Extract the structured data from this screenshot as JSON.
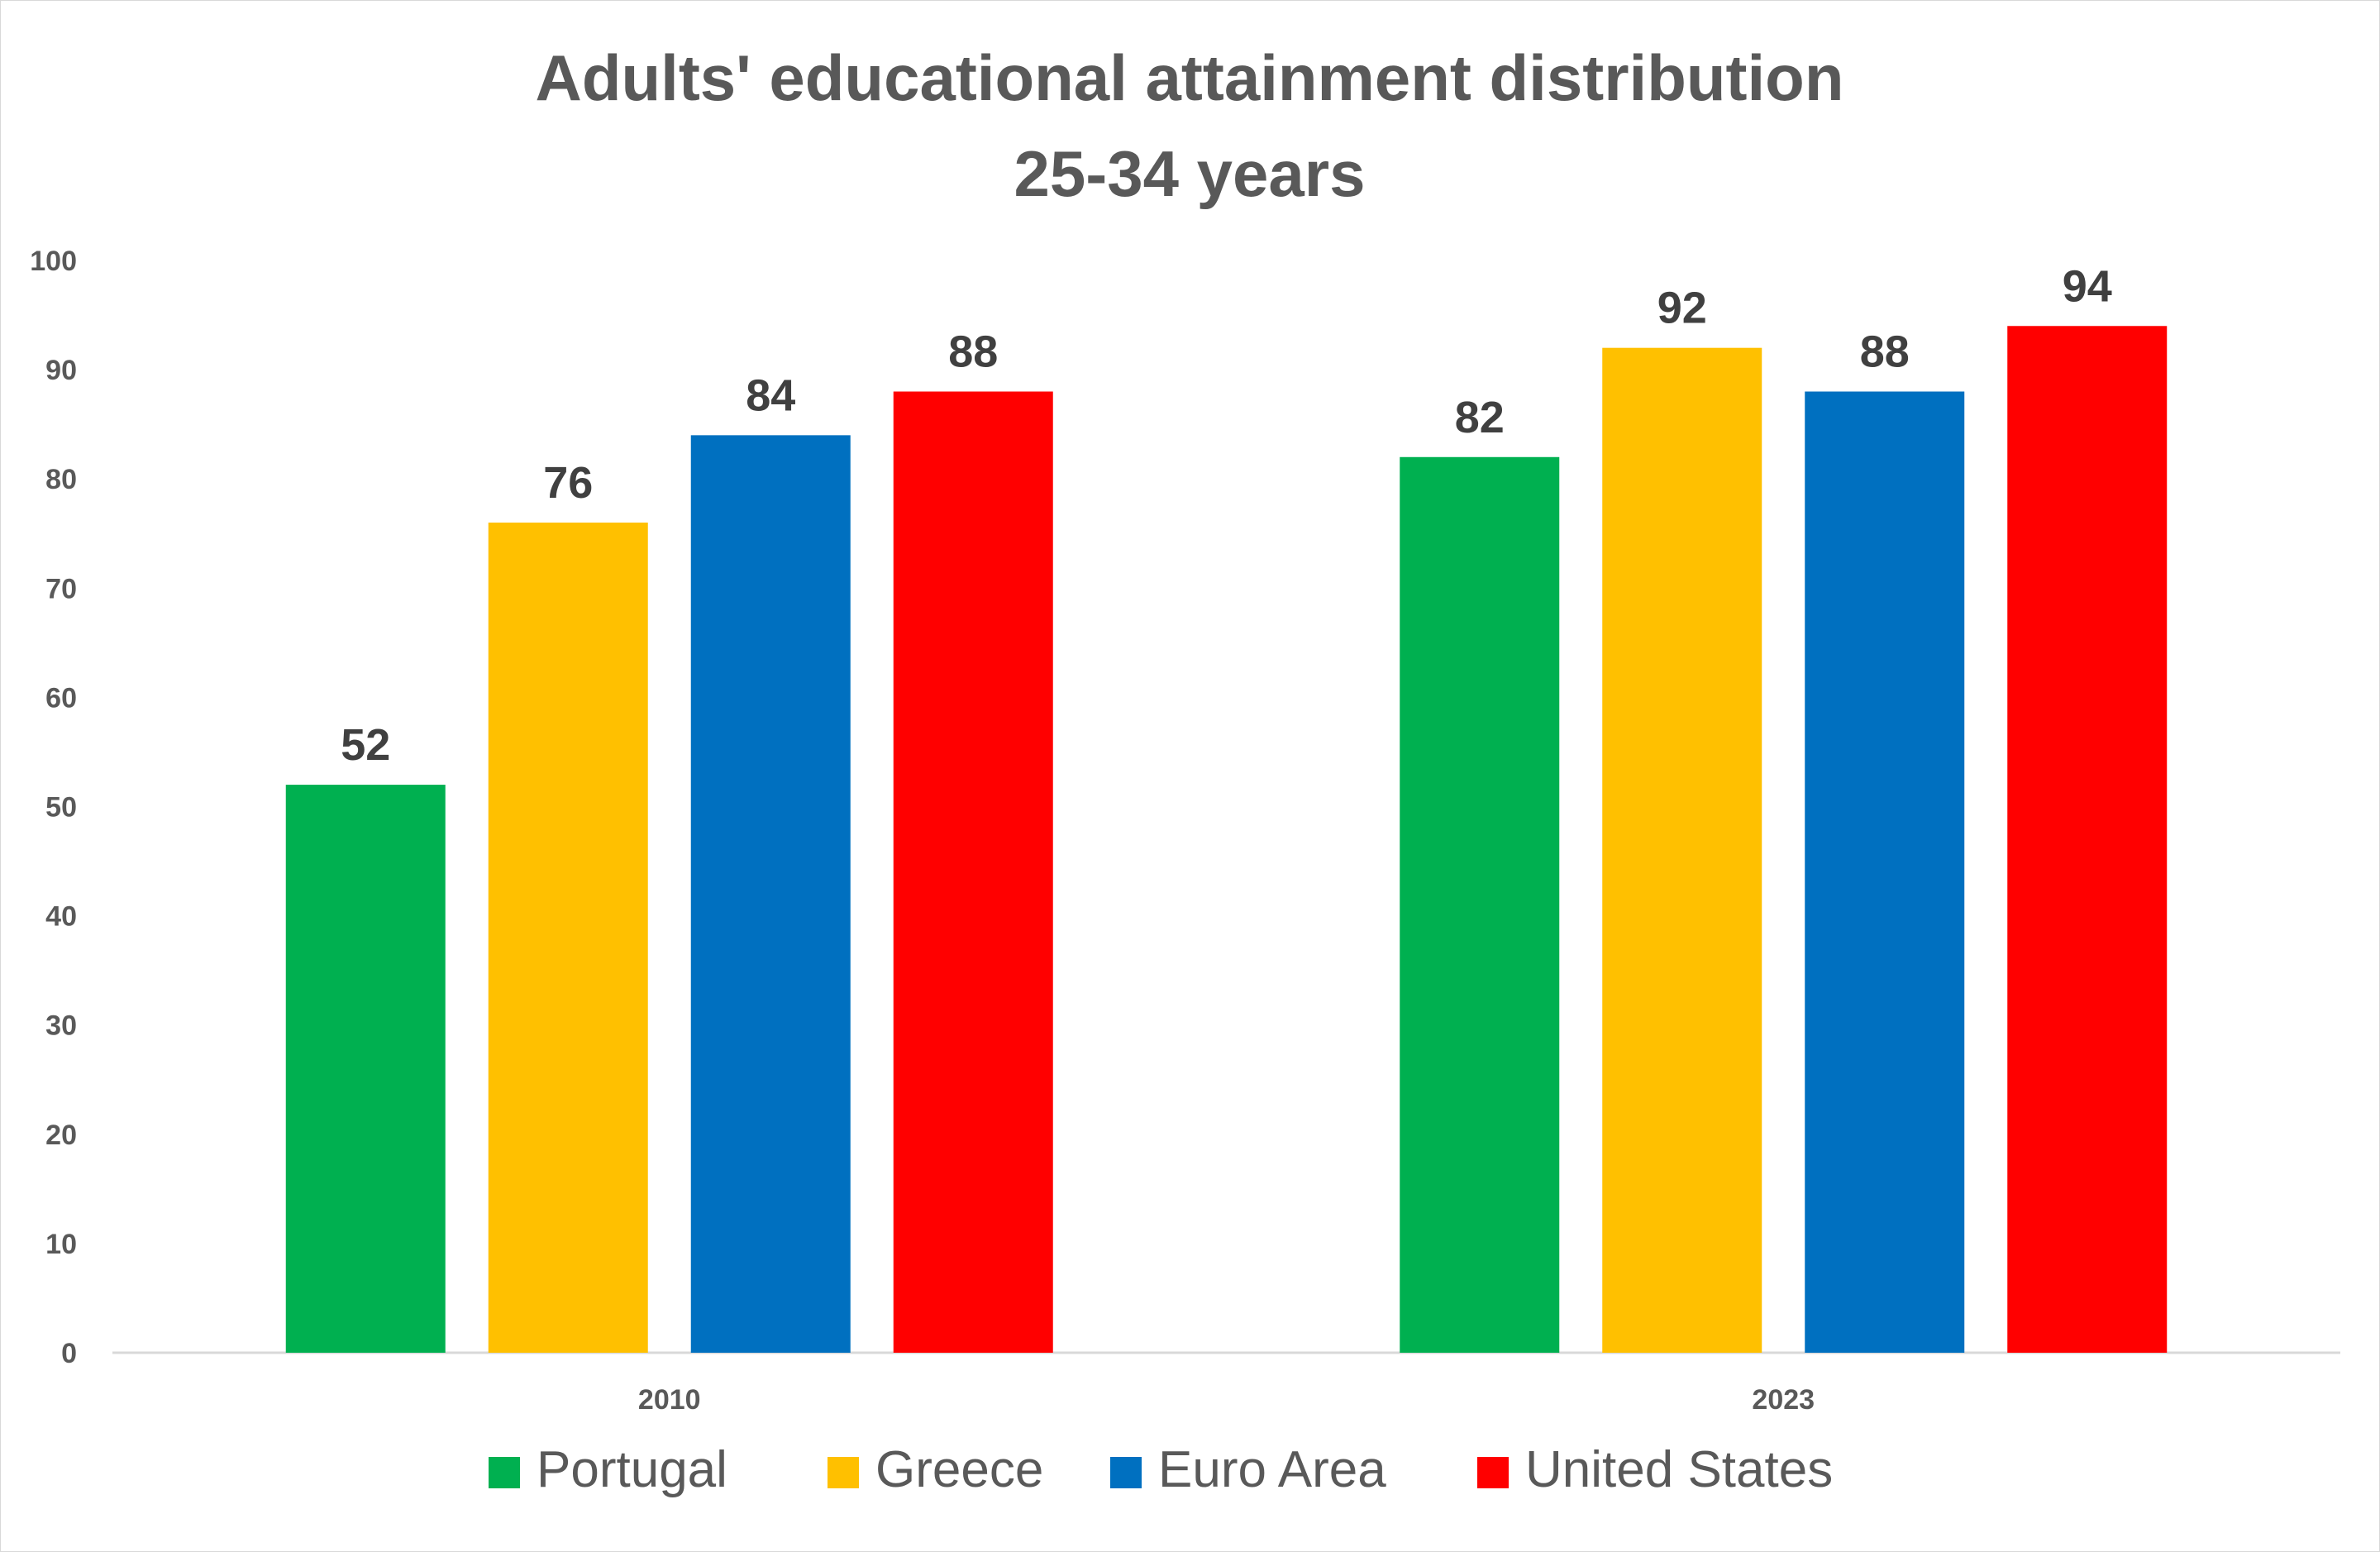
{
  "chart_data": {
    "type": "bar",
    "title": "Adults' educational attainment distribution",
    "subtitle": "25-34 years",
    "categories": [
      "2010",
      "2023"
    ],
    "series": [
      {
        "name": "Portugal",
        "values": [
          52,
          82
        ],
        "labels": [
          "52",
          "82"
        ],
        "color": "#00b050"
      },
      {
        "name": "Greece",
        "values": [
          76,
          92
        ],
        "labels": [
          "76",
          "92"
        ],
        "color": "#ffc000"
      },
      {
        "name": "Euro Area",
        "values": [
          84,
          88
        ],
        "labels": [
          "84",
          "88"
        ],
        "color": "#0070c0"
      },
      {
        "name": "United States",
        "values": [
          88,
          94
        ],
        "labels": [
          "88",
          "94"
        ],
        "color": "#ff0000"
      }
    ],
    "ylim": [
      0,
      100
    ],
    "yticks": [
      "0",
      "10",
      "20",
      "30",
      "40",
      "50",
      "60",
      "70",
      "80",
      "90",
      "100"
    ],
    "xlabel": "",
    "ylabel": "",
    "grid": false,
    "legend_position": "bottom"
  }
}
